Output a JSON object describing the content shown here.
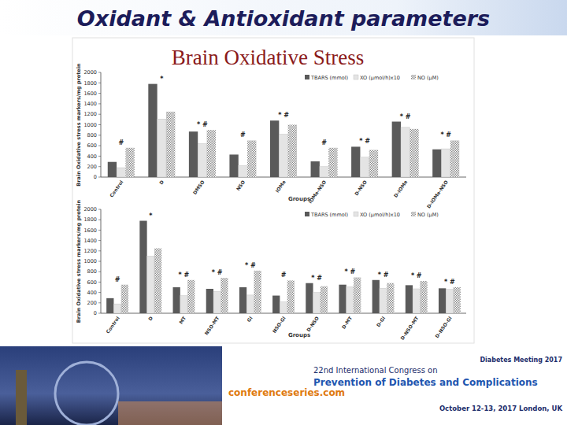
{
  "title": "Oxidant & Antioxidant parameters",
  "subtitle": "Brain Oxidative Stress",
  "footer": {
    "brand": "conferenceseries.com",
    "congress": "22nd International Congress on",
    "topic": "Prevention of Diabetes and Complications",
    "date": "October 12-13, 2017 London, UK",
    "meeting": "Diabetes Meeting 2017"
  },
  "chart_data": [
    {
      "type": "bar",
      "ylabel": "Brain Oxidative stress markers/mg protein",
      "xlabel": "Groups",
      "categories": [
        "Control",
        "D",
        "DMSO",
        "NSO",
        "IOMe",
        "IOMe-NSO",
        "D-NSO",
        "D-IOMe",
        "D-IOMe-NSO"
      ],
      "series": [
        {
          "name": "TBARS (mmol)",
          "color": "#5a5a5a",
          "values": [
            290,
            1780,
            870,
            430,
            1080,
            300,
            580,
            1060,
            530
          ]
        },
        {
          "name": "XO (µmol/h)x10",
          "color": "#e4e4e4",
          "values": [
            180,
            1110,
            640,
            220,
            820,
            200,
            380,
            950,
            540
          ]
        },
        {
          "name": "NO (µM)",
          "color": "#8a8a8a",
          "values": [
            560,
            1250,
            900,
            700,
            1000,
            560,
            520,
            920,
            700
          ]
        }
      ],
      "annotations": [
        "#",
        "*",
        "* #",
        "#",
        "* #",
        "#",
        "* #",
        "* #",
        "* #"
      ],
      "ylim": [
        0,
        2000
      ],
      "yticks": [
        0,
        200,
        400,
        600,
        800,
        1000,
        1200,
        1400,
        1600,
        1800,
        2000
      ],
      "legend": "top-right"
    },
    {
      "type": "bar",
      "ylabel": "Brain Oxidative stress markers/mg protein",
      "xlabel": "Groups",
      "categories": [
        "Control",
        "D",
        "MT",
        "NSO-MT",
        "Gl",
        "NSO-Gl",
        "D-NSO",
        "D-MT",
        "D-Gl",
        "D-NSO-MT",
        "D-NSO-Gl"
      ],
      "series": [
        {
          "name": "TBARS (mmol)",
          "color": "#5a5a5a",
          "values": [
            290,
            1780,
            500,
            470,
            500,
            340,
            580,
            550,
            640,
            540,
            480
          ]
        },
        {
          "name": "XO (µmol/h)x10",
          "color": "#e4e4e4",
          "values": [
            180,
            1100,
            340,
            420,
            350,
            220,
            400,
            510,
            480,
            470,
            460
          ]
        },
        {
          "name": "NO (µM)",
          "color": "#8a8a8a",
          "values": [
            550,
            1250,
            640,
            680,
            820,
            630,
            520,
            690,
            580,
            620,
            500
          ]
        }
      ],
      "annotations": [
        "#",
        "*",
        "* #",
        "* #",
        "* #",
        "#",
        "* #",
        "* #",
        "* #",
        "* #",
        "* #"
      ],
      "ylim": [
        0,
        2000
      ],
      "yticks": [
        0,
        200,
        400,
        600,
        800,
        1000,
        1200,
        1400,
        1600,
        1800,
        2000
      ],
      "legend": "top-right"
    }
  ]
}
